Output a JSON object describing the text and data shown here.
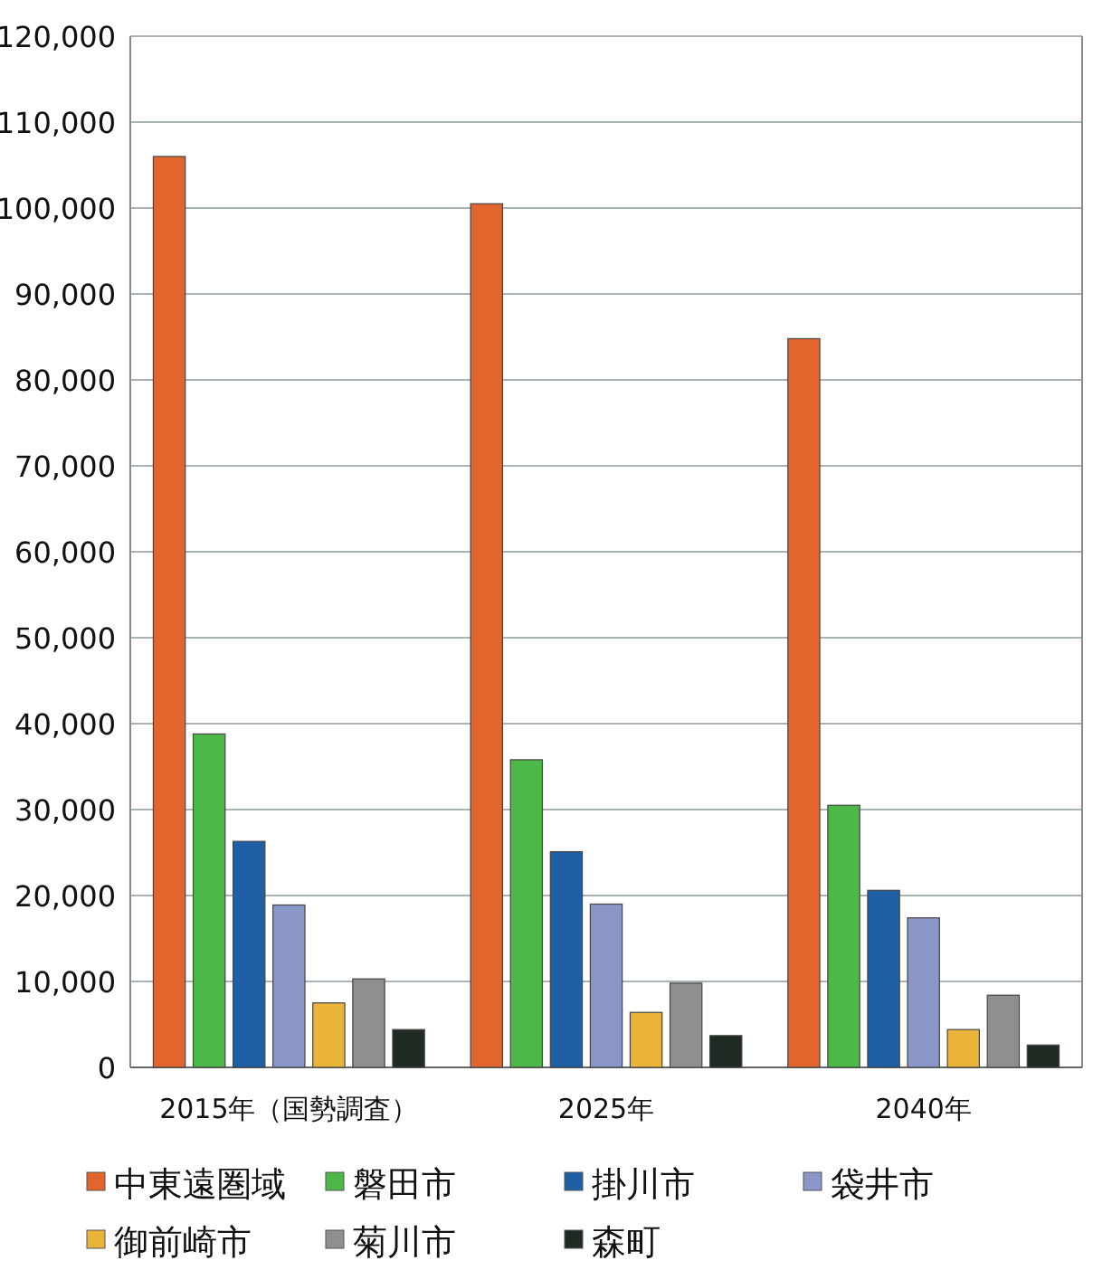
{
  "chart_data": {
    "type": "bar",
    "categories": [
      "2015年（国勢調査）",
      "2025年",
      "2040年"
    ],
    "series": [
      {
        "name": "中東遠圏域",
        "color": "#e2652e",
        "values": [
          106000,
          100500,
          84800
        ]
      },
      {
        "name": "磐田市",
        "color": "#4cb848",
        "values": [
          38800,
          35800,
          30500
        ]
      },
      {
        "name": "掛川市",
        "color": "#1f5fa5",
        "values": [
          26300,
          25100,
          20600
        ]
      },
      {
        "name": "袋井市",
        "color": "#8a95c8",
        "values": [
          18900,
          19000,
          17400
        ]
      },
      {
        "name": "御前崎市",
        "color": "#eab43a",
        "values": [
          7500,
          6400,
          4400
        ]
      },
      {
        "name": "菊川市",
        "color": "#8f8f8f",
        "values": [
          10300,
          9800,
          8400
        ]
      },
      {
        "name": "森町",
        "color": "#1e2a22",
        "values": [
          4400,
          3700,
          2600
        ]
      }
    ],
    "ylim": [
      0,
      120000
    ],
    "yticks": [
      0,
      {
        "value": 10000,
        "label": "10,000"
      },
      {
        "value": 20000,
        "label": "20,000"
      },
      {
        "value": 30000,
        "label": "30,000"
      },
      {
        "value": 40000,
        "label": "40,000"
      },
      {
        "value": 50000,
        "label": "50,000"
      },
      {
        "value": 60000,
        "label": "60,000"
      },
      {
        "value": 70000,
        "label": "70,000"
      },
      {
        "value": 80000,
        "label": "80,000"
      },
      {
        "value": 90000,
        "label": "90,000"
      },
      {
        "value": 100000,
        "label": "100,000"
      },
      {
        "value": 110000,
        "label": "110,000"
      },
      {
        "value": 120000,
        "label": "120,000"
      }
    ],
    "grid": "y",
    "legend": "bottom"
  }
}
